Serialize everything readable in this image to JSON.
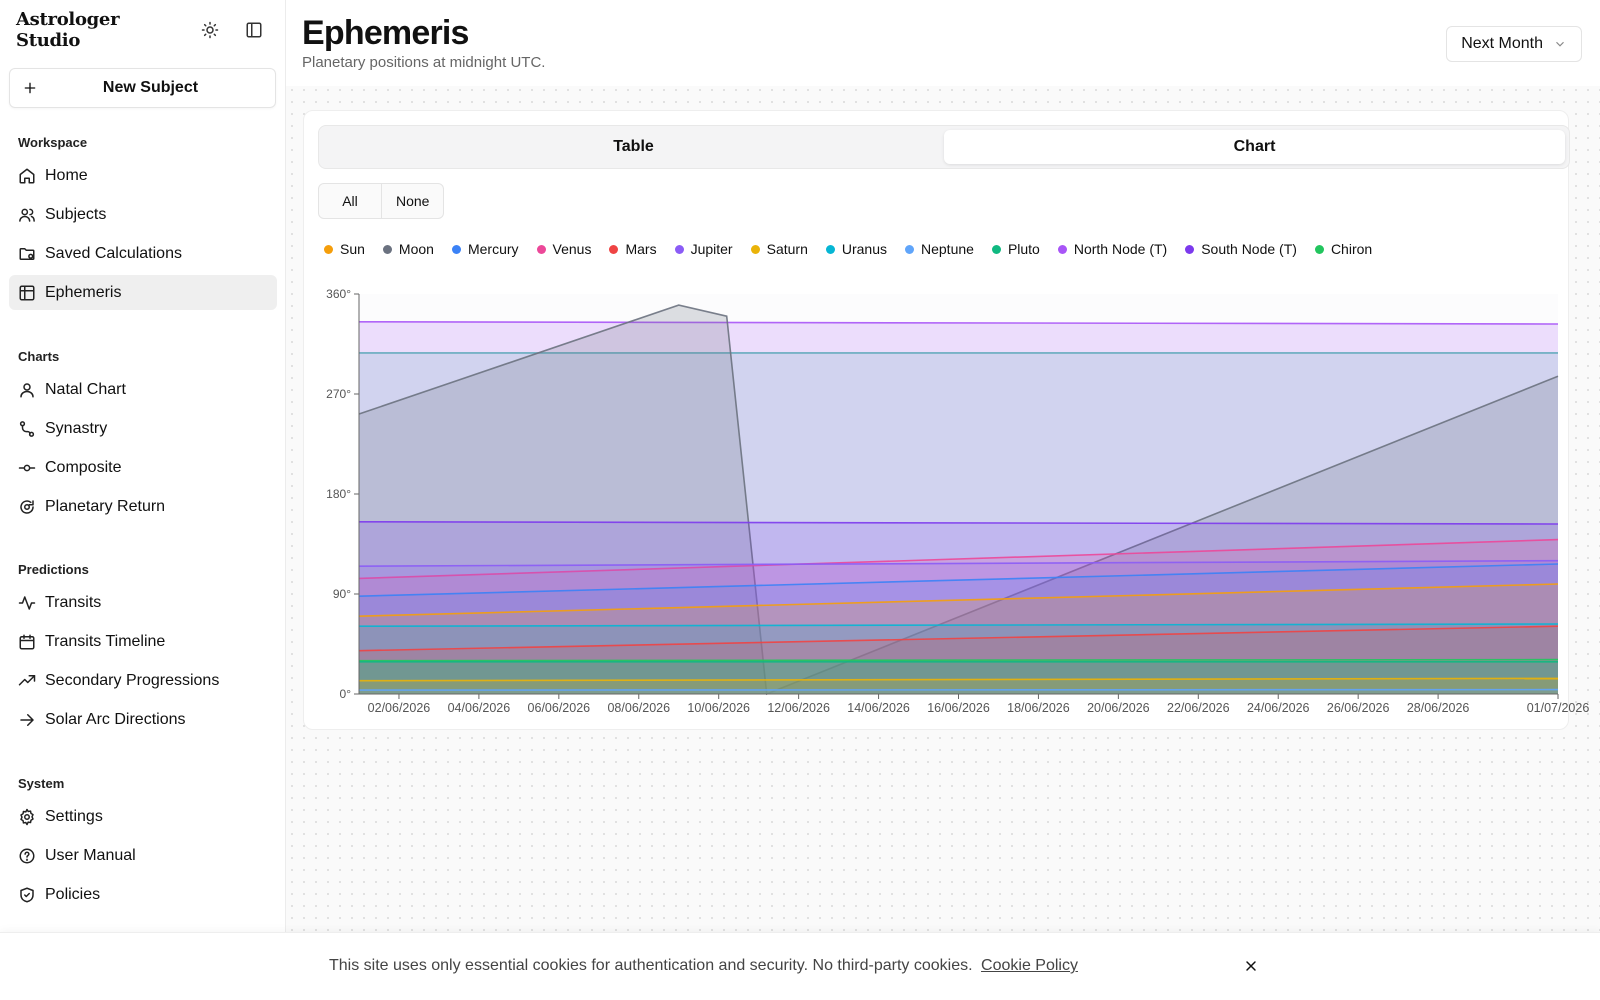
{
  "app": {
    "brand": "Astrologer Studio"
  },
  "sidebar": {
    "new_subject": "New Subject",
    "groups": [
      {
        "title": "Workspace",
        "items": [
          {
            "label": "Home",
            "icon": "home-icon"
          },
          {
            "label": "Subjects",
            "icon": "users-icon"
          },
          {
            "label": "Saved Calculations",
            "icon": "folder-icon"
          },
          {
            "label": "Ephemeris",
            "icon": "table-icon",
            "active": true
          }
        ]
      },
      {
        "title": "Charts",
        "items": [
          {
            "label": "Natal Chart",
            "icon": "user-icon"
          },
          {
            "label": "Synastry",
            "icon": "route-icon"
          },
          {
            "label": "Composite",
            "icon": "commit-icon"
          },
          {
            "label": "Planetary Return",
            "icon": "refresh-icon"
          }
        ]
      },
      {
        "title": "Predictions",
        "items": [
          {
            "label": "Transits",
            "icon": "activity-icon"
          },
          {
            "label": "Transits Timeline",
            "icon": "calendar-icon"
          },
          {
            "label": "Secondary Progressions",
            "icon": "trending-icon"
          },
          {
            "label": "Solar Arc Directions",
            "icon": "arrow-right-icon"
          }
        ]
      },
      {
        "title": "System",
        "items": [
          {
            "label": "Settings",
            "icon": "gear-icon"
          },
          {
            "label": "User Manual",
            "icon": "help-icon"
          },
          {
            "label": "Policies",
            "icon": "shield-icon"
          }
        ]
      }
    ]
  },
  "header": {
    "title": "Ephemeris",
    "subtitle": "Planetary positions at midnight UTC.",
    "range": "Next Month"
  },
  "view_tabs": {
    "table": "Table",
    "chart": "Chart",
    "active": "Chart"
  },
  "filter": {
    "all": "All",
    "none": "None"
  },
  "chart_data": {
    "type": "area",
    "x": [
      "2026-06-01",
      "2026-07-01"
    ],
    "x_ticks": [
      "02/06/2026",
      "04/06/2026",
      "06/06/2026",
      "08/06/2026",
      "10/06/2026",
      "12/06/2026",
      "14/06/2026",
      "16/06/2026",
      "18/06/2026",
      "20/06/2026",
      "22/06/2026",
      "24/06/2026",
      "26/06/2026",
      "28/06/2026",
      "01/07/2026"
    ],
    "y_ticks": [
      "0°",
      "90°",
      "180°",
      "270°",
      "360°"
    ],
    "ylim": [
      0,
      360
    ],
    "series": [
      {
        "name": "Sun",
        "color": "#f59e0b",
        "points": [
          [
            0,
            70
          ],
          [
            30,
            99
          ]
        ]
      },
      {
        "name": "Moon",
        "color": "#6b7280",
        "points": [
          [
            0,
            252
          ],
          [
            8,
            350
          ],
          [
            9.2,
            340
          ],
          [
            10.2,
            0
          ],
          [
            30,
            286
          ]
        ]
      },
      {
        "name": "Mercury",
        "color": "#3b82f6",
        "points": [
          [
            0,
            88
          ],
          [
            30,
            117
          ]
        ]
      },
      {
        "name": "Venus",
        "color": "#ec4899",
        "points": [
          [
            0,
            104
          ],
          [
            30,
            139
          ]
        ]
      },
      {
        "name": "Mars",
        "color": "#ef4444",
        "points": [
          [
            0,
            39
          ],
          [
            30,
            61
          ]
        ]
      },
      {
        "name": "Jupiter",
        "color": "#8b5cf6",
        "points": [
          [
            0,
            115
          ],
          [
            30,
            120
          ]
        ]
      },
      {
        "name": "Saturn",
        "color": "#eab308",
        "points": [
          [
            0,
            12
          ],
          [
            30,
            14
          ]
        ]
      },
      {
        "name": "Uranus",
        "color": "#06b6d4",
        "points": [
          [
            0,
            61
          ],
          [
            30,
            63
          ]
        ]
      },
      {
        "name": "Neptune",
        "color": "#60a5fa",
        "points": [
          [
            0,
            3.5
          ],
          [
            30,
            4
          ]
        ]
      },
      {
        "name": "Pluto",
        "color": "#10b981",
        "points": [
          [
            0,
            29
          ],
          [
            30,
            29
          ]
        ]
      },
      {
        "name": "North Node (T)",
        "color": "#a855f7",
        "points": [
          [
            0,
            335
          ],
          [
            30,
            333
          ]
        ]
      },
      {
        "name": "South Node (T)",
        "color": "#7c3aed",
        "points": [
          [
            0,
            155
          ],
          [
            30,
            153
          ]
        ]
      },
      {
        "name": "Chiron",
        "color": "#22c55e",
        "points": [
          [
            0,
            30
          ],
          [
            30,
            31
          ]
        ]
      }
    ],
    "extra_band": {
      "name": "teal-line",
      "color": "#5aa6b8",
      "points": [
        [
          0,
          307
        ],
        [
          30,
          307
        ]
      ]
    }
  },
  "cookie": {
    "text": "This site uses only essential cookies for authentication and security. No third-party cookies.",
    "link": "Cookie Policy"
  }
}
